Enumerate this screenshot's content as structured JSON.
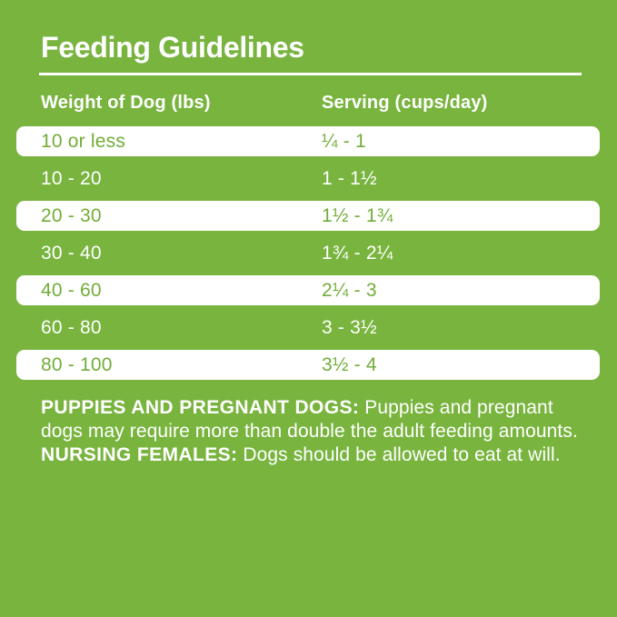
{
  "page": {
    "background_color": "#79b43f",
    "text_color": "#ffffff",
    "highlight_row_background": "#ffffff",
    "highlight_row_text_color": "#72ad38"
  },
  "title": "Feeding Guidelines",
  "table": {
    "columns": [
      "Weight of Dog (lbs)",
      "Serving (cups/day)"
    ],
    "rows": [
      {
        "weight": "10 or less",
        "serving": "¼ - 1"
      },
      {
        "weight": "10 - 20",
        "serving": "1 - 1½"
      },
      {
        "weight": "20 - 30",
        "serving": "1½ - 1¾"
      },
      {
        "weight": "30 - 40",
        "serving": "1¾ - 2¼"
      },
      {
        "weight": "40 - 60",
        "serving": "2¼ - 3"
      },
      {
        "weight": "60 - 80",
        "serving": "3 - 3½"
      },
      {
        "weight": "80 - 100",
        "serving": "3½ - 4"
      }
    ]
  },
  "notes": {
    "puppies_label": "PUPPIES AND PREGNANT DOGS:",
    "puppies_text": " Puppies and pregnant dogs may require more than double the adult feeding amounts. ",
    "nursing_label": "NURSING FEMALES:",
    "nursing_text": " Dogs should be allowed to eat at will."
  }
}
